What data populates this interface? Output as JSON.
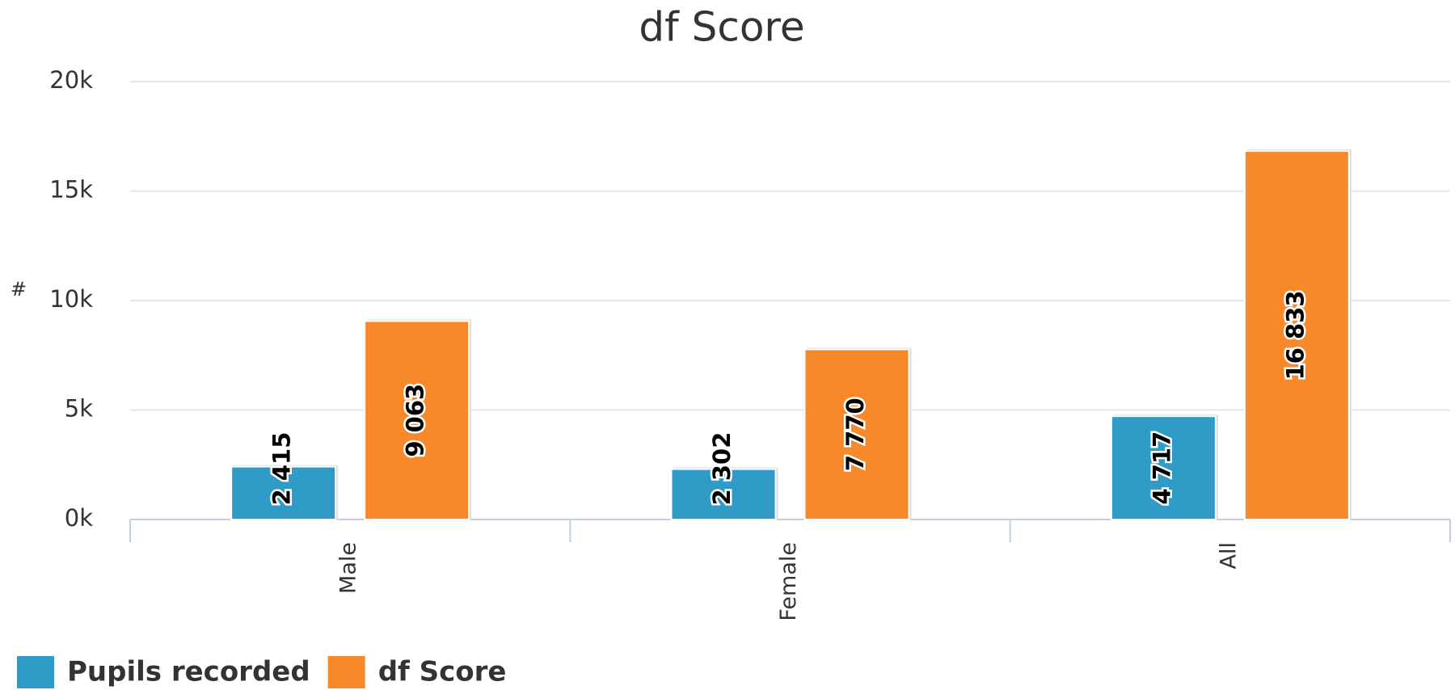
{
  "chart_data": {
    "type": "bar",
    "title": "df Score",
    "y_label": "#",
    "categories": [
      "Male",
      "Female",
      "All"
    ],
    "series": [
      {
        "name": "Pupils recorded",
        "color": "#2f9bc6",
        "values": [
          2415,
          2302,
          4717
        ],
        "value_labels": [
          "2 415",
          "2 302",
          "4 717"
        ]
      },
      {
        "name": "df Score",
        "color": "#f8892b",
        "values": [
          9063,
          7770,
          16833
        ],
        "value_labels": [
          "9 063",
          "7 770",
          "16 833"
        ]
      }
    ],
    "ylim": [
      0,
      20000
    ],
    "yticks": [
      {
        "value": 0,
        "label": "0k"
      },
      {
        "value": 5000,
        "label": "5k"
      },
      {
        "value": 10000,
        "label": "10k"
      },
      {
        "value": 15000,
        "label": "15k"
      },
      {
        "value": 20000,
        "label": "20k"
      }
    ],
    "grid": true,
    "legend": "bottom-left"
  }
}
